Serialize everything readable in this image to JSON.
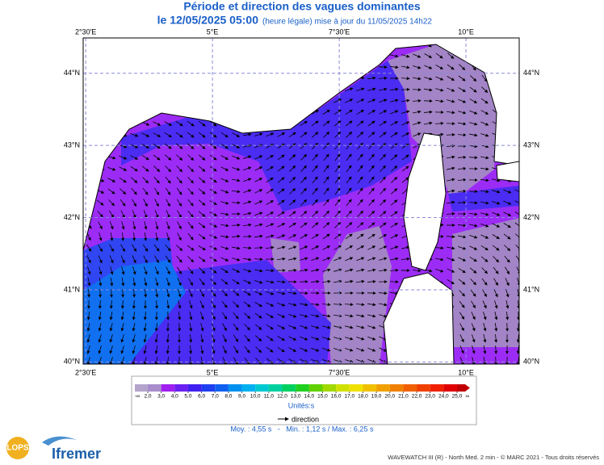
{
  "header": {
    "title": "Période et direction des vagues dominantes",
    "date": "le 12/05/2025 05:00",
    "update": "(heure légale) mise à jour du 11/05/2025 14h22"
  },
  "map": {
    "lon_range": [
      2.45,
      11.05
    ],
    "lat_range": [
      39.97,
      44.49
    ],
    "lon_ticks": [
      {
        "value": 2.5,
        "label": "2°30'E"
      },
      {
        "value": 5,
        "label": "5°E"
      },
      {
        "value": 7.5,
        "label": "7°30'E"
      },
      {
        "value": 10,
        "label": "10°E"
      }
    ],
    "lat_ticks": [
      {
        "value": 40,
        "label": "40°N"
      },
      {
        "value": 41,
        "label": "41°N"
      },
      {
        "value": 42,
        "label": "42°N"
      },
      {
        "value": 43,
        "label": "43°N"
      },
      {
        "value": 44,
        "label": "44°N"
      }
    ]
  },
  "colorbar": {
    "min_label": "-∞",
    "max_label": "∞",
    "ticks": [
      {
        "value": 2,
        "label": "2,0"
      },
      {
        "value": 3,
        "label": "3,0"
      },
      {
        "value": 4,
        "label": "4,0"
      },
      {
        "value": 5,
        "label": "5,0"
      },
      {
        "value": 6,
        "label": "6,0"
      },
      {
        "value": 7,
        "label": "7,0"
      },
      {
        "value": 8,
        "label": "8,0"
      },
      {
        "value": 9,
        "label": "9,0"
      },
      {
        "value": 10,
        "label": "10,0"
      },
      {
        "value": 11,
        "label": "11,0"
      },
      {
        "value": 12,
        "label": "12,0"
      },
      {
        "value": 13,
        "label": "13,0"
      },
      {
        "value": 14,
        "label": "14,0"
      },
      {
        "value": 15,
        "label": "15,0"
      },
      {
        "value": 16,
        "label": "16,0"
      },
      {
        "value": 17,
        "label": "17,0"
      },
      {
        "value": 18,
        "label": "18,0"
      },
      {
        "value": 19,
        "label": "19,0"
      },
      {
        "value": 20,
        "label": "20,0"
      },
      {
        "value": 21,
        "label": "21,0"
      },
      {
        "value": 22,
        "label": "22,0"
      },
      {
        "value": 23,
        "label": "23,0"
      },
      {
        "value": 24,
        "label": "24,0"
      },
      {
        "value": 25,
        "label": "25,0"
      }
    ],
    "colors": [
      "#b4a4cc",
      "#a88ccc",
      "#a020f0",
      "#6a20f0",
      "#4020f0",
      "#2040f0",
      "#1060f0",
      "#0090f0",
      "#00b0f0",
      "#00c8d0",
      "#00d0a0",
      "#00d060",
      "#20d020",
      "#60d000",
      "#a0d800",
      "#d0e000",
      "#f0e000",
      "#f0c000",
      "#f0a000",
      "#f08000",
      "#f06000",
      "#f04000",
      "#f02000",
      "#e00000",
      "#c00000"
    ],
    "unit": "Unités:s"
  },
  "direction_label": "direction",
  "stats": "Moy. : 4,55 s   -   Min. : 1,12 s / Max. : 6,25 s",
  "logos": {
    "lops": "LOPS",
    "ifremer": "Ifremer"
  },
  "footer": "WAVEWATCH III (R) - North Med. 2 min - © MARC 2021 - Tous droits réservés"
}
